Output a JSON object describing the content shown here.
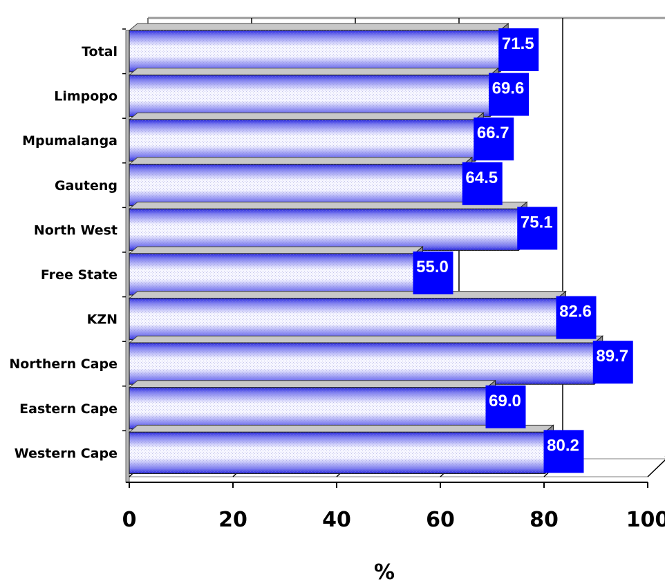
{
  "chart_data": {
    "type": "bar",
    "orientation": "horizontal",
    "categories": [
      "Total",
      "Limpopo",
      "Mpumalanga",
      "Gauteng",
      "North West",
      "Free State",
      "KZN",
      "Northern Cape",
      "Eastern Cape",
      "Western Cape"
    ],
    "values": [
      71.5,
      69.6,
      66.7,
      64.5,
      75.1,
      55.0,
      82.6,
      89.7,
      69.0,
      80.2
    ],
    "value_labels": [
      "71.5",
      "69.6",
      "66.7",
      "64.5",
      "75.1",
      "55.0",
      "82.6",
      "89.7",
      "69.0",
      "80.2"
    ],
    "xlabel": "%",
    "ylabel": "",
    "xlim": [
      0,
      100
    ],
    "xticks": [
      0,
      20,
      40,
      60,
      80,
      100
    ],
    "xtick_labels": [
      "0",
      "20",
      "40",
      "60",
      "80",
      "100"
    ],
    "grid": true,
    "legend": "none",
    "colors": {
      "bar_light": "#f4f4ff",
      "bar_dark": "#3030e0",
      "bar_side": "#7a7a7a",
      "label_box": "#0000ff",
      "wall_edge": "#999999"
    }
  }
}
